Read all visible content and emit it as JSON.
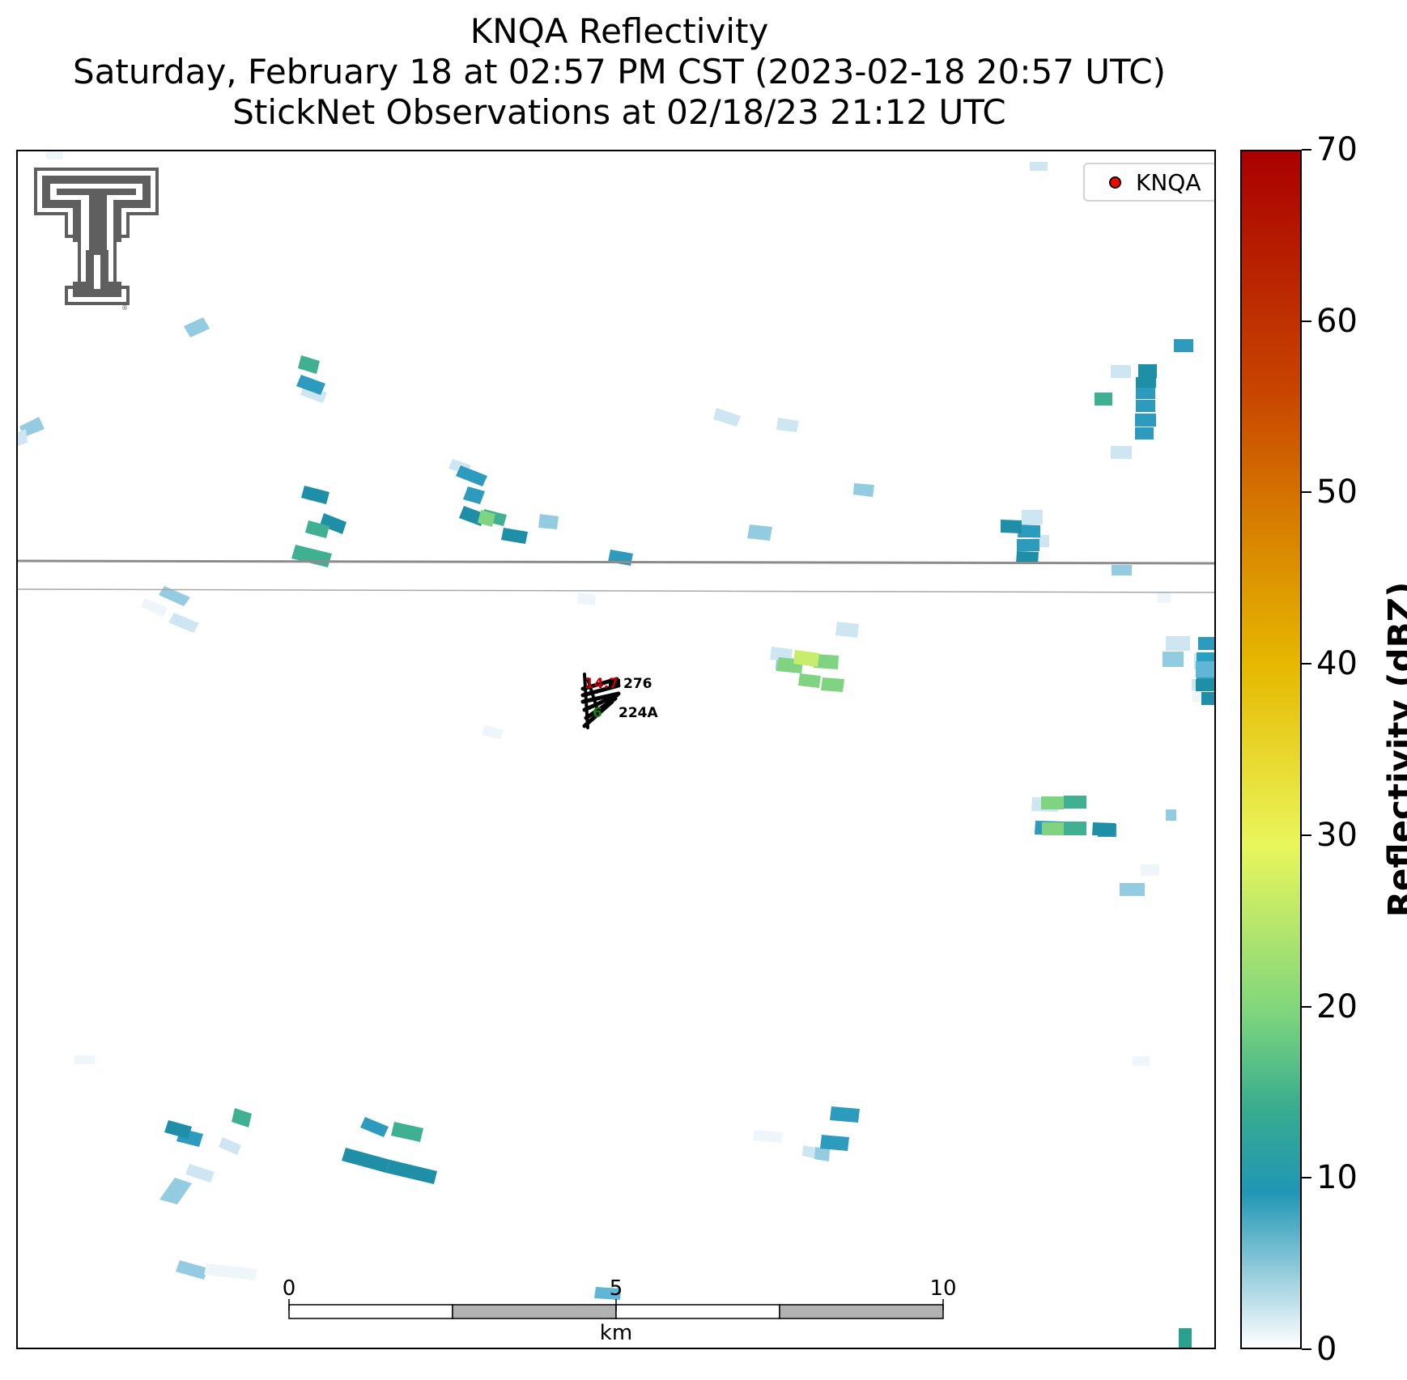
{
  "header": {
    "title_line1": "KNQA Reflectivity",
    "title_line2": "Saturday, February 18 at 02:57 PM CST (2023-02-18 20:57 UTC)",
    "title_line3": "StickNet Observations at 02/18/23 21:12 UTC"
  },
  "map": {
    "logo": "texas-tech-double-t-logo",
    "legend": {
      "label": "KNQA",
      "marker_color": "#ff0000"
    },
    "station": {
      "temperature": "14.7",
      "temperature_color": "#c00000",
      "dewpoint": "6",
      "dewpoint_color": "#1a7a1a",
      "id_upper": "276",
      "id_lower": "224A"
    },
    "scalebar": {
      "ticks": [
        "0",
        "5",
        "10"
      ],
      "unit": "km"
    }
  },
  "colorbar": {
    "label": "Reflectivity (dBZ)",
    "ticks": [
      "0",
      "10",
      "20",
      "30",
      "40",
      "50",
      "60",
      "70"
    ],
    "min": 0,
    "max": 70,
    "colors": {
      "low": "#ffffff",
      "teal": "#2196b5",
      "green": "#7ed57d",
      "yellow": "#e9f65b",
      "orange": "#d88300",
      "red": "#aa0000"
    }
  }
}
